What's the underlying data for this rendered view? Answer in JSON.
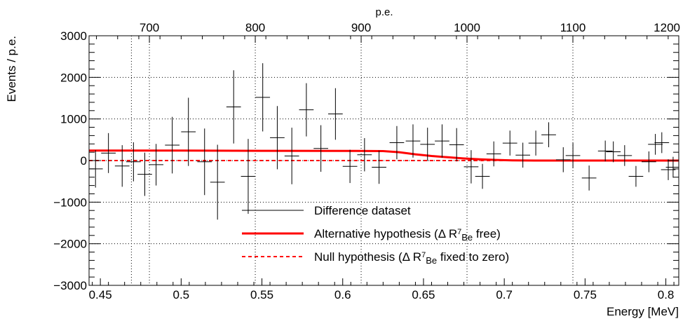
{
  "chart_data": {
    "type": "scatter",
    "xlabel": "Energy [MeV]",
    "x2label": "p.e.",
    "ylabel": "Events / p.e.",
    "xlim": [
      0.443,
      0.808
    ],
    "ylim": [
      -3000,
      3000
    ],
    "x_ticks": [
      0.45,
      0.5,
      0.55,
      0.6,
      0.65,
      0.7,
      0.75,
      0.8
    ],
    "x_tick_labels": [
      "0.45",
      "0.5",
      "0.55",
      "0.6",
      "0.65",
      "0.7",
      "0.75",
      "0.8"
    ],
    "x2_ticks": [
      700,
      800,
      900,
      1000,
      1100,
      1200
    ],
    "x2_tick_labels": [
      "700",
      "800",
      "900",
      "1000",
      "1100",
      "1200"
    ],
    "x2lim": [
      643,
      1200
    ],
    "y_ticks": [
      -3000,
      -2000,
      -1000,
      0,
      1000,
      2000,
      3000
    ],
    "y_tick_labels": [
      "−3000",
      "−2000",
      "−1000",
      "0",
      "1000",
      "2000",
      "3000"
    ],
    "grid": true,
    "legend_position": "bottom-center",
    "legend": [
      {
        "label": "Difference dataset",
        "style": "thin-black-line"
      },
      {
        "label": "Alternative hypothesis (Δ R",
        "sup": "7",
        "sub": "Be",
        "label_tail": " free)",
        "style": "solid-red"
      },
      {
        "label": "Null hypothesis (Δ R",
        "sup": "7",
        "sub": "Be",
        "label_tail": " fixed to zero)",
        "style": "dashed-red"
      }
    ],
    "series": [
      {
        "name": "Difference dataset",
        "color": "#000000",
        "x_halfwidth": 0.0045,
        "points": [
          {
            "x": 0.447,
            "y": -200,
            "err": 450
          },
          {
            "x": 0.455,
            "y": 180,
            "err": 480
          },
          {
            "x": 0.4635,
            "y": -130,
            "err": 500
          },
          {
            "x": 0.4705,
            "y": -30,
            "err": 470
          },
          {
            "x": 0.4775,
            "y": -330,
            "err": 520
          },
          {
            "x": 0.4845,
            "y": -100,
            "err": 500
          },
          {
            "x": 0.4945,
            "y": 370,
            "err": 680
          },
          {
            "x": 0.5045,
            "y": 690,
            "err": 820
          },
          {
            "x": 0.5145,
            "y": -30,
            "err": 800
          },
          {
            "x": 0.5225,
            "y": -520,
            "err": 900
          },
          {
            "x": 0.5325,
            "y": 1290,
            "err": 880
          },
          {
            "x": 0.5415,
            "y": -380,
            "err": 900
          },
          {
            "x": 0.5505,
            "y": 1520,
            "err": 820
          },
          {
            "x": 0.5595,
            "y": 550,
            "err": 760
          },
          {
            "x": 0.5685,
            "y": 110,
            "err": 680
          },
          {
            "x": 0.5775,
            "y": 1220,
            "err": 640
          },
          {
            "x": 0.5865,
            "y": 290,
            "err": 560
          },
          {
            "x": 0.5955,
            "y": 1120,
            "err": 620
          },
          {
            "x": 0.6045,
            "y": -140,
            "err": 400
          },
          {
            "x": 0.6135,
            "y": 140,
            "err": 400
          },
          {
            "x": 0.6225,
            "y": -160,
            "err": 400
          },
          {
            "x": 0.6335,
            "y": 430,
            "err": 400
          },
          {
            "x": 0.6435,
            "y": 470,
            "err": 400
          },
          {
            "x": 0.6525,
            "y": 390,
            "err": 400
          },
          {
            "x": 0.6615,
            "y": 470,
            "err": 400
          },
          {
            "x": 0.6705,
            "y": 380,
            "err": 400
          },
          {
            "x": 0.6795,
            "y": -150,
            "err": 400
          },
          {
            "x": 0.6865,
            "y": -380,
            "err": 300
          },
          {
            "x": 0.6935,
            "y": 160,
            "err": 300
          },
          {
            "x": 0.7035,
            "y": 420,
            "err": 300
          },
          {
            "x": 0.7115,
            "y": 130,
            "err": 300
          },
          {
            "x": 0.7195,
            "y": 420,
            "err": 300
          },
          {
            "x": 0.7275,
            "y": 620,
            "err": 300
          },
          {
            "x": 0.7365,
            "y": 20,
            "err": 300
          },
          {
            "x": 0.7425,
            "y": 120,
            "err": 300
          },
          {
            "x": 0.7525,
            "y": -420,
            "err": 300
          },
          {
            "x": 0.7625,
            "y": 230,
            "err": 250
          },
          {
            "x": 0.7675,
            "y": 210,
            "err": 250
          },
          {
            "x": 0.7745,
            "y": 120,
            "err": 250
          },
          {
            "x": 0.7815,
            "y": -380,
            "err": 250
          },
          {
            "x": 0.7895,
            "y": -30,
            "err": 250
          },
          {
            "x": 0.7935,
            "y": 390,
            "err": 250
          },
          {
            "x": 0.7975,
            "y": 430,
            "err": 250
          },
          {
            "x": 0.8015,
            "y": -220,
            "err": 250
          },
          {
            "x": 0.8045,
            "y": -160,
            "err": 250
          }
        ]
      },
      {
        "name": "Alternative hypothesis",
        "color": "#ff0000",
        "line_style": "solid",
        "x": [
          0.443,
          0.5,
          0.55,
          0.6,
          0.625,
          0.635,
          0.645,
          0.655,
          0.665,
          0.675,
          0.685,
          0.695,
          0.705,
          0.72,
          0.75,
          0.808
        ],
        "y": [
          240,
          240,
          235,
          232,
          228,
          200,
          150,
          110,
          80,
          50,
          30,
          15,
          5,
          0,
          0,
          0
        ]
      },
      {
        "name": "Null hypothesis",
        "color": "#ff0000",
        "line_style": "dashed",
        "x": [
          0.443,
          0.808
        ],
        "y": [
          0,
          0
        ]
      }
    ]
  }
}
